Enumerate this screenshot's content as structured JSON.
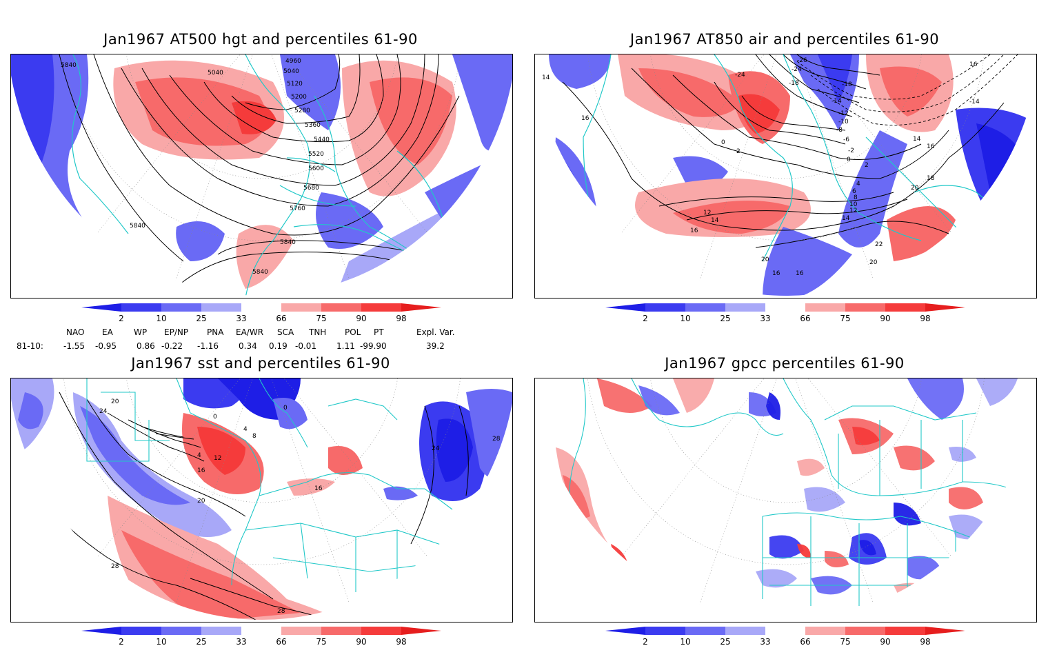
{
  "panels": [
    {
      "title": "Jan1967 AT500 hgt and percentiles 61-90",
      "contour_labels": [
        "5840",
        "5040",
        "4960",
        "5040",
        "5120",
        "5200",
        "5280",
        "5360",
        "5440",
        "5520",
        "5600",
        "5680",
        "5760",
        "5840",
        "5840",
        "5840"
      ]
    },
    {
      "title": "Jan1967 AT850 air and percentiles 61-90",
      "contour_labels": [
        "14",
        "16",
        "-24",
        "-26",
        "-24",
        "-18",
        "-18",
        "-14",
        "-12",
        "-10",
        "-8",
        "-6",
        "-2",
        "0",
        "2",
        "4",
        "6",
        "8",
        "10",
        "12",
        "14",
        "16",
        "18",
        "20",
        "22",
        "16",
        "-14",
        "14",
        "16",
        "12",
        "14",
        "16",
        "20",
        "16",
        "20",
        "2",
        "0"
      ]
    },
    {
      "title": "Jan1967 sst and percentiles 61-90",
      "contour_labels": [
        "24",
        "20",
        "0",
        "4",
        "8",
        "12",
        "16",
        "4",
        "20",
        "28",
        "28",
        "24",
        "28",
        "16",
        "0"
      ]
    },
    {
      "title": "Jan1967 gpcc percentiles 61-90",
      "contour_labels": []
    }
  ],
  "colorbar": {
    "ticks": [
      "2",
      "10",
      "25",
      "33",
      "66",
      "75",
      "90",
      "98"
    ],
    "colors": {
      "lt2": "#1e1ee6",
      "b10": "#3b3bf0",
      "b25": "#6a6af5",
      "b33": "#a8a8f8",
      "w": "#ffffff",
      "r66": "#f9a8a8",
      "r75": "#f76a6a",
      "r90": "#f53b3b",
      "gt98": "#e61e1e"
    }
  },
  "indices": {
    "headers": [
      "NAO",
      "EA",
      "WP",
      "EP/NP",
      "PNA",
      "EA/WR",
      "SCA",
      "TNH",
      "POL",
      "PT",
      "Expl. Var."
    ],
    "row_label": "81-10:",
    "values": [
      "-1.55",
      "-0.95",
      "0.86",
      "-0.22",
      "-1.16",
      "0.34",
      "0.19",
      "-0.01",
      "1.11",
      "-99.90",
      "39.2"
    ]
  },
  "theme": {
    "coast": "#20c8c8",
    "contour": "#000000",
    "grid": "#888888"
  }
}
